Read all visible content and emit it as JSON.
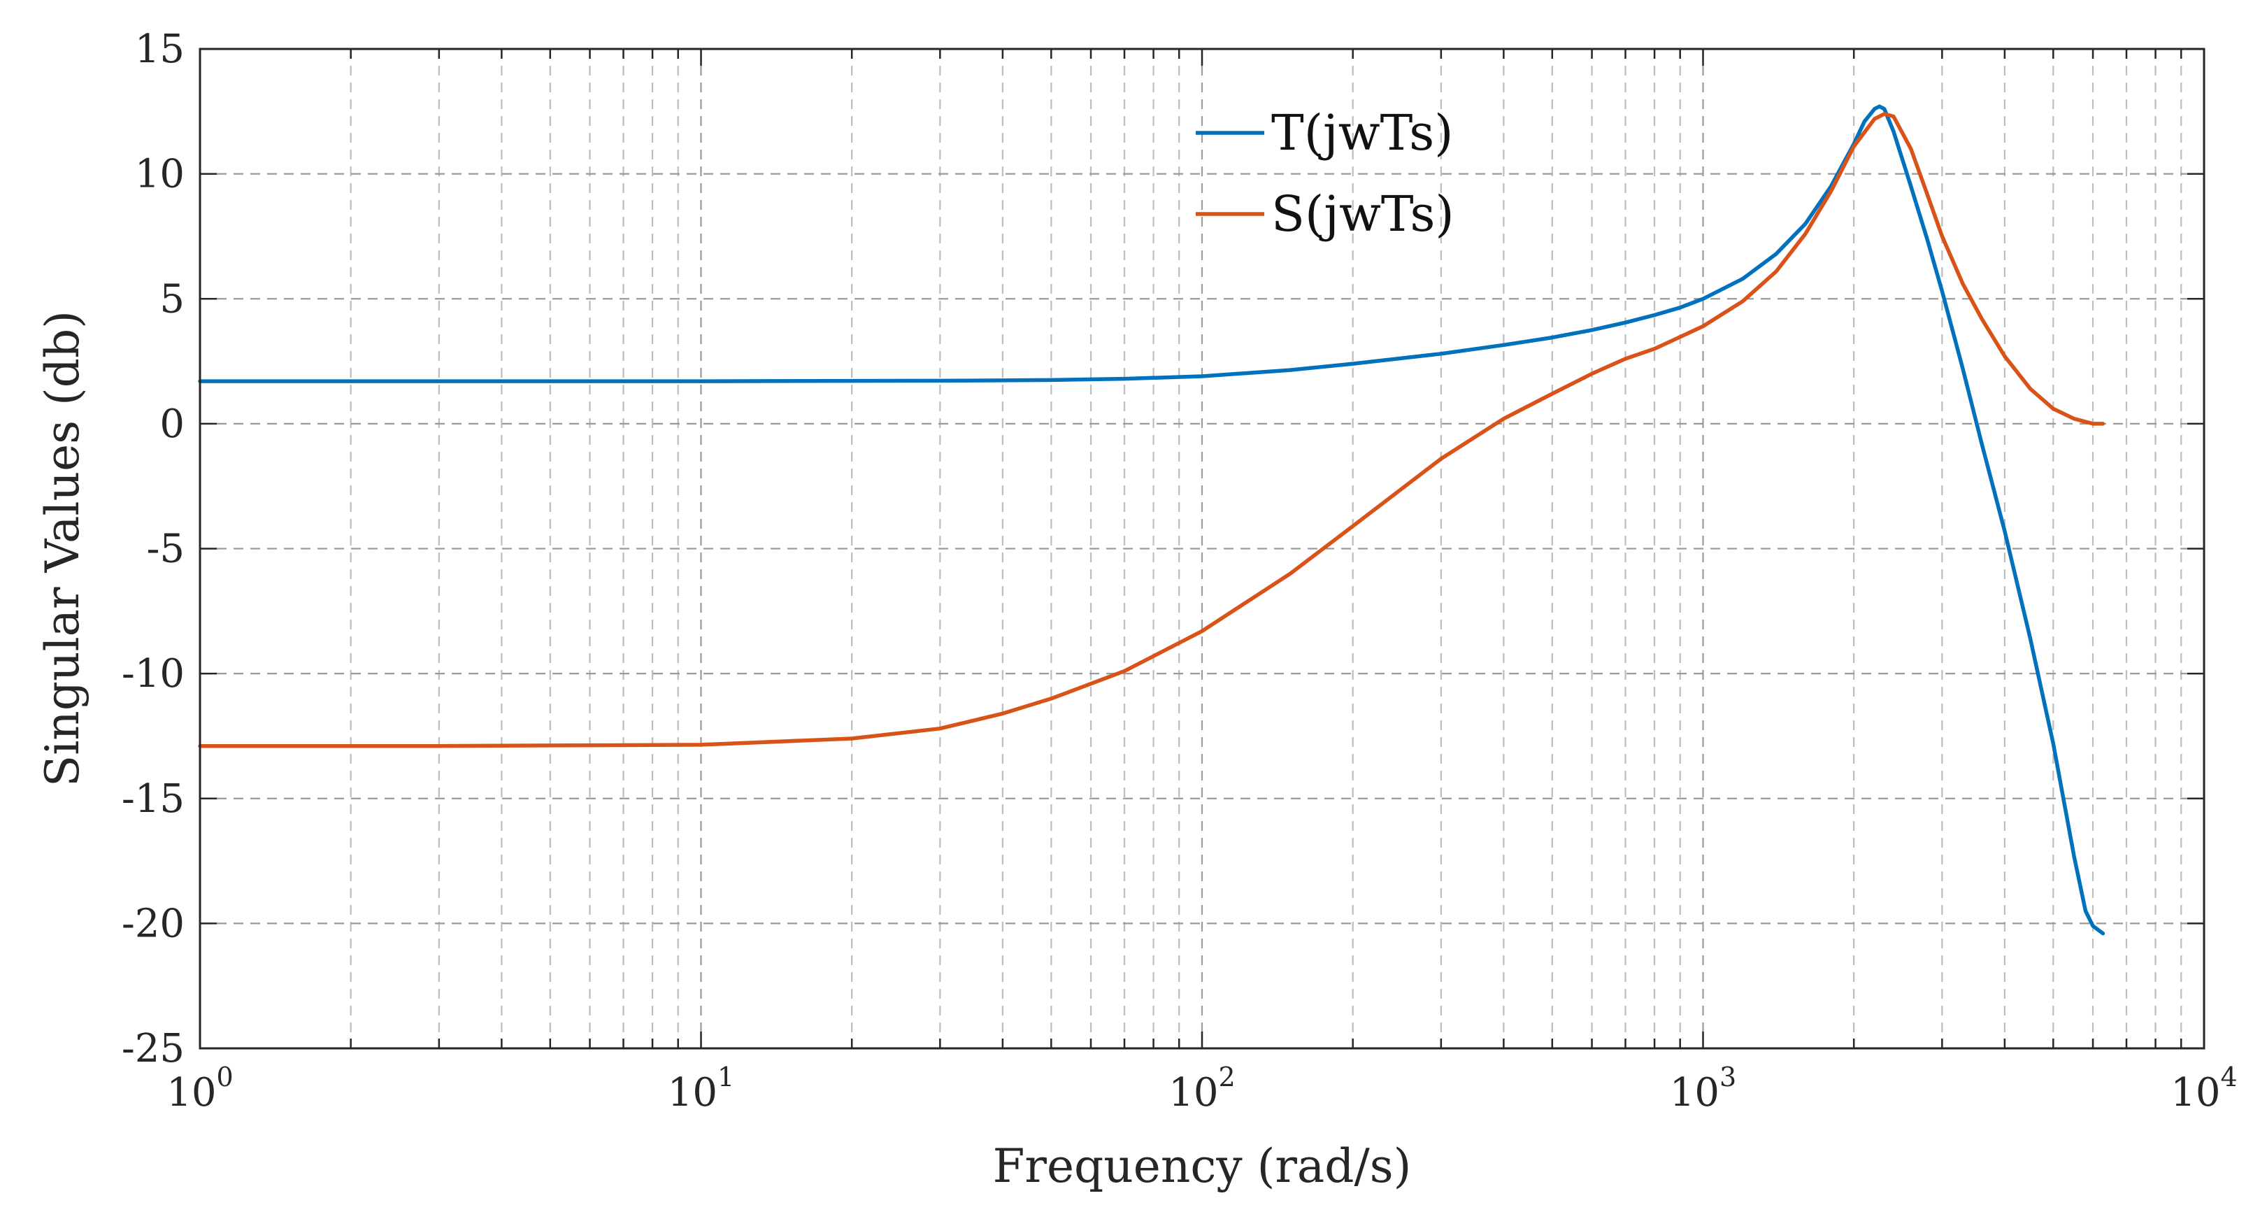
{
  "chart_data": {
    "type": "line",
    "title": "",
    "xlabel": "Frequency (rad/s)",
    "ylabel": "Singular Values (db)",
    "xscale": "log",
    "xlim": [
      1,
      10000
    ],
    "ylim": [
      -25,
      15
    ],
    "grid": true,
    "legend_position": "top-center",
    "xticks": [
      {
        "value": 1,
        "base": "10",
        "exp": "0"
      },
      {
        "value": 10,
        "base": "10",
        "exp": "1"
      },
      {
        "value": 100,
        "base": "10",
        "exp": "2"
      },
      {
        "value": 1000,
        "base": "10",
        "exp": "3"
      },
      {
        "value": 10000,
        "base": "10",
        "exp": "4"
      }
    ],
    "yticks": [
      {
        "value": 15,
        "label": "15"
      },
      {
        "value": 10,
        "label": "10"
      },
      {
        "value": 5,
        "label": "5"
      },
      {
        "value": 0,
        "label": "0"
      },
      {
        "value": -5,
        "label": "-5"
      },
      {
        "value": -10,
        "label": "-10"
      },
      {
        "value": -15,
        "label": "-15"
      },
      {
        "value": -20,
        "label": "-20"
      },
      {
        "value": -25,
        "label": "-25"
      }
    ],
    "series": [
      {
        "name": "T(jwTs)",
        "color": "#0072BD",
        "x": [
          1,
          3,
          10,
          30,
          50,
          70,
          100,
          150,
          200,
          300,
          400,
          500,
          600,
          700,
          800,
          900,
          1000,
          1200,
          1400,
          1600,
          1800,
          2000,
          2100,
          2200,
          2250,
          2300,
          2400,
          2600,
          2800,
          3000,
          3300,
          3600,
          4000,
          4500,
          5000,
          5500,
          5800,
          6000,
          6283
        ],
        "y": [
          1.7,
          1.7,
          1.7,
          1.72,
          1.75,
          1.8,
          1.9,
          2.15,
          2.4,
          2.8,
          3.15,
          3.45,
          3.75,
          4.05,
          4.35,
          4.65,
          5.0,
          5.8,
          6.8,
          8.0,
          9.5,
          11.2,
          12.1,
          12.6,
          12.7,
          12.6,
          11.7,
          9.5,
          7.4,
          5.3,
          2.2,
          -0.8,
          -4.3,
          -8.6,
          -12.8,
          -17.3,
          -19.5,
          -20.1,
          -20.4
        ]
      },
      {
        "name": "S(jwTs)",
        "color": "#D95319",
        "x": [
          1,
          3,
          10,
          20,
          30,
          40,
          50,
          70,
          100,
          150,
          200,
          300,
          400,
          500,
          600,
          700,
          800,
          1000,
          1200,
          1400,
          1600,
          1800,
          2000,
          2200,
          2300,
          2400,
          2600,
          2800,
          3000,
          3300,
          3600,
          4000,
          4500,
          5000,
          5500,
          6000,
          6283
        ],
        "y": [
          -12.9,
          -12.9,
          -12.85,
          -12.6,
          -12.2,
          -11.6,
          -11.0,
          -9.9,
          -8.3,
          -6.0,
          -4.1,
          -1.4,
          0.2,
          1.2,
          2.0,
          2.6,
          3.0,
          3.9,
          4.9,
          6.1,
          7.6,
          9.3,
          11.1,
          12.2,
          12.4,
          12.3,
          11.0,
          9.2,
          7.5,
          5.6,
          4.2,
          2.7,
          1.4,
          0.6,
          0.2,
          0.0,
          0.0
        ]
      }
    ]
  }
}
